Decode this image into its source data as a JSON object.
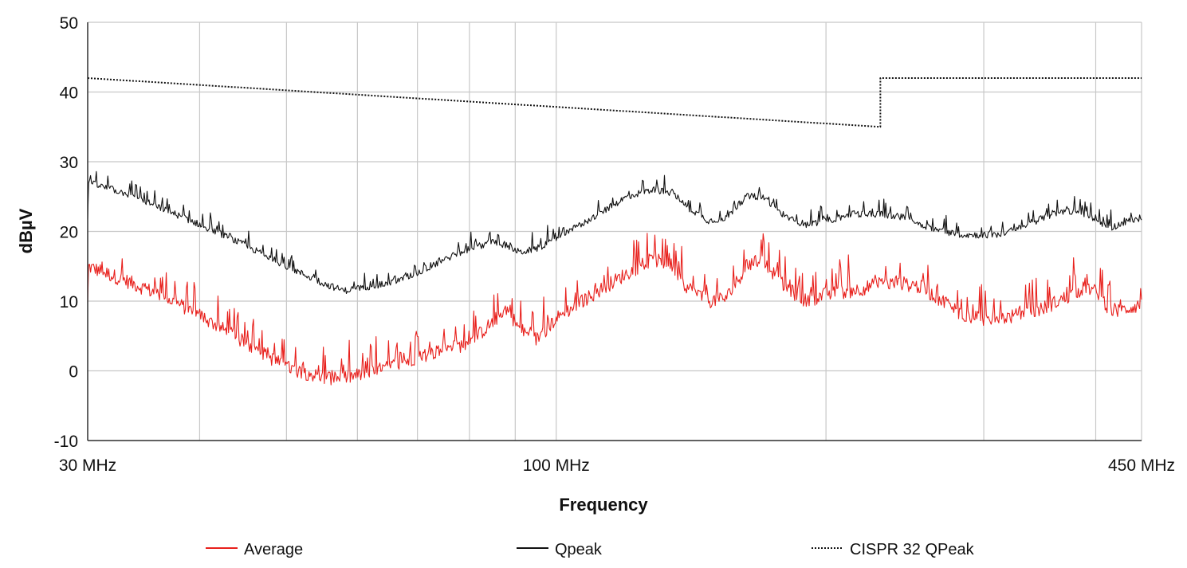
{
  "chart_data": {
    "type": "line",
    "title": "",
    "xlabel": "Frequency",
    "ylabel": "dBµV",
    "x_scale": "log",
    "xlim": [
      30,
      450
    ],
    "ylim": [
      -10,
      50
    ],
    "y_ticks": [
      -10,
      0,
      10,
      20,
      30,
      40,
      50
    ],
    "x_tick_labels": [
      {
        "value": 30,
        "label": "30 MHz"
      },
      {
        "value": 100,
        "label": "100 MHz"
      },
      {
        "value": 450,
        "label": "450 MHz"
      }
    ],
    "x_gridlines": [
      30,
      40,
      50,
      60,
      70,
      80,
      90,
      100,
      200,
      300,
      400,
      450
    ],
    "grid": true,
    "legend_position": "bottom",
    "series": [
      {
        "name": "Average",
        "color": "#e8201c",
        "style": "solid",
        "noise": 3.5,
        "x": [
          30,
          33,
          36,
          40,
          45,
          50,
          55,
          58,
          61,
          65,
          70,
          75,
          80,
          85,
          88,
          91,
          95,
          100,
          110,
          120,
          128,
          135,
          140,
          148,
          155,
          163,
          170,
          180,
          190,
          200,
          215,
          230,
          245,
          255,
          270,
          285,
          295,
          310,
          330,
          350,
          370,
          390,
          405,
          415,
          425,
          435,
          450
        ],
        "y": [
          15,
          13,
          11,
          8,
          4,
          0.5,
          -1,
          -1,
          -0.5,
          0.5,
          2,
          3,
          4,
          7,
          9,
          6,
          4.5,
          7.5,
          11,
          14,
          16,
          15,
          12,
          10,
          10.5,
          15,
          16,
          12,
          10,
          11,
          11.5,
          12.5,
          12.5,
          12,
          10,
          8,
          7.5,
          7.5,
          8,
          9,
          10.5,
          12,
          11,
          8.5,
          8.5,
          9,
          9.5
        ]
      },
      {
        "name": "Qpeak",
        "color": "#111111",
        "style": "solid",
        "noise": 1.6,
        "x": [
          30,
          33,
          36,
          40,
          45,
          50,
          55,
          58,
          61,
          65,
          70,
          75,
          80,
          85,
          88,
          91,
          95,
          100,
          110,
          120,
          128,
          135,
          140,
          148,
          155,
          163,
          170,
          180,
          190,
          200,
          215,
          230,
          245,
          255,
          270,
          285,
          295,
          310,
          330,
          350,
          370,
          390,
          405,
          415,
          425,
          435,
          450
        ],
        "y": [
          27,
          25.5,
          23.5,
          21,
          18,
          15,
          12.5,
          11.5,
          12,
          12.5,
          14,
          16,
          17.5,
          18.5,
          18,
          17,
          17.5,
          19,
          22,
          25,
          26,
          25.5,
          23.5,
          21.5,
          22,
          25,
          25,
          22,
          21,
          21.5,
          22.5,
          22.5,
          22,
          21,
          20,
          19.5,
          19.5,
          19.5,
          20.5,
          22,
          23,
          22.5,
          21,
          20.5,
          21,
          21.5,
          22
        ]
      },
      {
        "name": "CISPR 32 QPeak",
        "color": "#111111",
        "style": "dotted",
        "noise": 0,
        "x": [
          30,
          230,
          230,
          450
        ],
        "y": [
          42,
          35,
          42,
          42
        ]
      }
    ]
  }
}
